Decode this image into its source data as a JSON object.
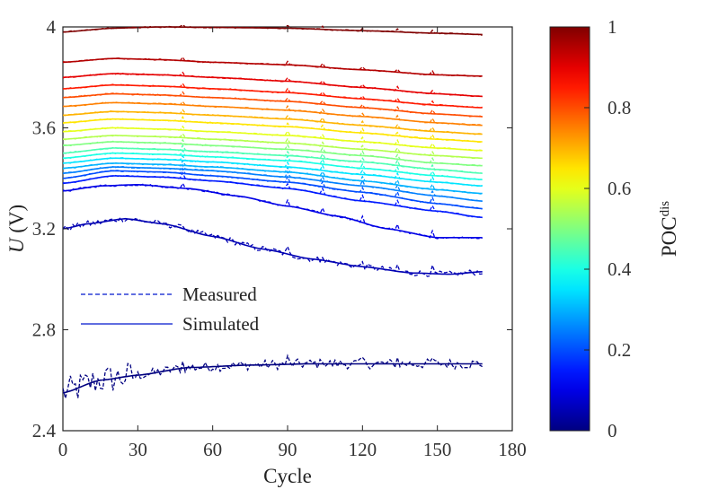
{
  "chart_data": {
    "type": "line",
    "xlabel": "Cycle",
    "ylabel_italic": "U",
    "ylabel_unit": " (V)",
    "xlim": [
      0,
      180
    ],
    "ylim": [
      2.4,
      4.0
    ],
    "xticks": [
      0,
      30,
      60,
      90,
      120,
      150,
      180
    ],
    "yticks": [
      2.4,
      2.8,
      3.2,
      3.6,
      4
    ],
    "legend": {
      "placement": "left-middle",
      "entries": [
        {
          "label": "Measured",
          "style": "dashed"
        },
        {
          "label": "Simulated",
          "style": "solid"
        }
      ]
    },
    "colorbar": {
      "label_base": "POC",
      "label_sup": "dis",
      "range": [
        0,
        1
      ],
      "ticks": [
        0,
        0.2,
        0.4,
        0.6,
        0.8,
        1
      ],
      "colormap": "jet"
    },
    "series": [
      {
        "poc": 0.0,
        "points": [
          [
            0,
            2.55
          ],
          [
            15,
            2.6
          ],
          [
            30,
            2.62
          ],
          [
            50,
            2.65
          ],
          [
            75,
            2.66
          ],
          [
            100,
            2.665
          ],
          [
            130,
            2.665
          ],
          [
            168,
            2.665
          ]
        ],
        "noise": [
          [
            0,
            30,
            0.06
          ],
          [
            30,
            168,
            0.02
          ]
        ]
      },
      {
        "poc": 0.05,
        "points": [
          [
            0,
            3.2
          ],
          [
            10,
            3.22
          ],
          [
            25,
            3.24
          ],
          [
            40,
            3.22
          ],
          [
            60,
            3.17
          ],
          [
            80,
            3.12
          ],
          [
            100,
            3.08
          ],
          [
            120,
            3.05
          ],
          [
            140,
            3.025
          ],
          [
            155,
            3.02
          ],
          [
            168,
            3.03
          ]
        ],
        "noise": [
          [
            0,
            168,
            0.012
          ]
        ]
      },
      {
        "poc": 0.1,
        "points": [
          [
            0,
            3.35
          ],
          [
            15,
            3.37
          ],
          [
            30,
            3.375
          ],
          [
            50,
            3.36
          ],
          [
            70,
            3.33
          ],
          [
            90,
            3.29
          ],
          [
            110,
            3.25
          ],
          [
            130,
            3.2
          ],
          [
            150,
            3.165
          ],
          [
            168,
            3.165
          ]
        ],
        "noise": [
          [
            0,
            168,
            0.004
          ]
        ]
      },
      {
        "poc": 0.15,
        "points": [
          [
            0,
            3.38
          ],
          [
            20,
            3.41
          ],
          [
            40,
            3.405
          ],
          [
            60,
            3.39
          ],
          [
            90,
            3.36
          ],
          [
            120,
            3.31
          ],
          [
            150,
            3.27
          ],
          [
            168,
            3.245
          ]
        ]
      },
      {
        "poc": 0.2,
        "points": [
          [
            0,
            3.4
          ],
          [
            20,
            3.43
          ],
          [
            40,
            3.425
          ],
          [
            60,
            3.41
          ],
          [
            90,
            3.385
          ],
          [
            120,
            3.345
          ],
          [
            150,
            3.3
          ],
          [
            168,
            3.28
          ]
        ]
      },
      {
        "poc": 0.25,
        "points": [
          [
            0,
            3.42
          ],
          [
            20,
            3.445
          ],
          [
            40,
            3.44
          ],
          [
            60,
            3.43
          ],
          [
            90,
            3.405
          ],
          [
            120,
            3.37
          ],
          [
            150,
            3.33
          ],
          [
            168,
            3.31
          ]
        ]
      },
      {
        "poc": 0.3,
        "points": [
          [
            0,
            3.44
          ],
          [
            20,
            3.46
          ],
          [
            40,
            3.455
          ],
          [
            60,
            3.445
          ],
          [
            90,
            3.425
          ],
          [
            120,
            3.39
          ],
          [
            150,
            3.355
          ],
          [
            168,
            3.34
          ]
        ]
      },
      {
        "poc": 0.35,
        "points": [
          [
            0,
            3.46
          ],
          [
            20,
            3.48
          ],
          [
            40,
            3.475
          ],
          [
            60,
            3.465
          ],
          [
            90,
            3.445
          ],
          [
            120,
            3.415
          ],
          [
            150,
            3.385
          ],
          [
            168,
            3.37
          ]
        ]
      },
      {
        "poc": 0.4,
        "points": [
          [
            0,
            3.48
          ],
          [
            20,
            3.5
          ],
          [
            40,
            3.495
          ],
          [
            60,
            3.485
          ],
          [
            90,
            3.47
          ],
          [
            120,
            3.44
          ],
          [
            150,
            3.41
          ],
          [
            168,
            3.395
          ]
        ]
      },
      {
        "poc": 0.45,
        "points": [
          [
            0,
            3.5
          ],
          [
            20,
            3.52
          ],
          [
            40,
            3.515
          ],
          [
            60,
            3.505
          ],
          [
            90,
            3.49
          ],
          [
            120,
            3.465
          ],
          [
            150,
            3.435
          ],
          [
            168,
            3.42
          ]
        ]
      },
      {
        "poc": 0.5,
        "points": [
          [
            0,
            3.53
          ],
          [
            20,
            3.545
          ],
          [
            40,
            3.54
          ],
          [
            60,
            3.53
          ],
          [
            90,
            3.515
          ],
          [
            120,
            3.49
          ],
          [
            150,
            3.46
          ],
          [
            168,
            3.45
          ]
        ]
      },
      {
        "poc": 0.55,
        "points": [
          [
            0,
            3.555
          ],
          [
            20,
            3.57
          ],
          [
            40,
            3.565
          ],
          [
            60,
            3.555
          ],
          [
            90,
            3.54
          ],
          [
            120,
            3.515
          ],
          [
            150,
            3.49
          ],
          [
            168,
            3.48
          ]
        ]
      },
      {
        "poc": 0.6,
        "points": [
          [
            0,
            3.585
          ],
          [
            20,
            3.6
          ],
          [
            40,
            3.595
          ],
          [
            60,
            3.585
          ],
          [
            90,
            3.57
          ],
          [
            120,
            3.545
          ],
          [
            150,
            3.52
          ],
          [
            168,
            3.51
          ]
        ]
      },
      {
        "poc": 0.65,
        "points": [
          [
            0,
            3.62
          ],
          [
            20,
            3.635
          ],
          [
            40,
            3.63
          ],
          [
            60,
            3.62
          ],
          [
            90,
            3.605
          ],
          [
            120,
            3.58
          ],
          [
            150,
            3.555
          ],
          [
            168,
            3.545
          ]
        ]
      },
      {
        "poc": 0.7,
        "points": [
          [
            0,
            3.65
          ],
          [
            20,
            3.665
          ],
          [
            40,
            3.66
          ],
          [
            60,
            3.65
          ],
          [
            90,
            3.635
          ],
          [
            120,
            3.61
          ],
          [
            150,
            3.585
          ],
          [
            168,
            3.575
          ]
        ]
      },
      {
        "poc": 0.75,
        "points": [
          [
            0,
            3.685
          ],
          [
            20,
            3.7
          ],
          [
            40,
            3.695
          ],
          [
            60,
            3.685
          ],
          [
            90,
            3.67
          ],
          [
            120,
            3.645
          ],
          [
            150,
            3.62
          ],
          [
            168,
            3.61
          ]
        ]
      },
      {
        "poc": 0.8,
        "points": [
          [
            0,
            3.72
          ],
          [
            20,
            3.735
          ],
          [
            40,
            3.73
          ],
          [
            60,
            3.72
          ],
          [
            90,
            3.705
          ],
          [
            120,
            3.68
          ],
          [
            150,
            3.655
          ],
          [
            168,
            3.645
          ]
        ]
      },
      {
        "poc": 0.85,
        "points": [
          [
            0,
            3.755
          ],
          [
            20,
            3.77
          ],
          [
            40,
            3.765
          ],
          [
            60,
            3.755
          ],
          [
            90,
            3.74
          ],
          [
            120,
            3.715
          ],
          [
            150,
            3.69
          ],
          [
            168,
            3.68
          ]
        ]
      },
      {
        "poc": 0.9,
        "points": [
          [
            0,
            3.8
          ],
          [
            20,
            3.815
          ],
          [
            40,
            3.81
          ],
          [
            60,
            3.8
          ],
          [
            90,
            3.785
          ],
          [
            120,
            3.76
          ],
          [
            150,
            3.735
          ],
          [
            168,
            3.725
          ]
        ]
      },
      {
        "poc": 0.95,
        "points": [
          [
            0,
            3.86
          ],
          [
            20,
            3.875
          ],
          [
            40,
            3.87
          ],
          [
            60,
            3.86
          ],
          [
            90,
            3.85
          ],
          [
            120,
            3.83
          ],
          [
            150,
            3.81
          ],
          [
            168,
            3.805
          ]
        ]
      },
      {
        "poc": 1.0,
        "points": [
          [
            0,
            3.98
          ],
          [
            20,
            3.995
          ],
          [
            40,
            4.0
          ],
          [
            60,
            3.998
          ],
          [
            90,
            3.995
          ],
          [
            120,
            3.985
          ],
          [
            150,
            3.975
          ],
          [
            168,
            3.97
          ]
        ]
      }
    ],
    "spike_cycles": [
      48,
      90,
      104,
      120,
      134,
      148
    ]
  }
}
